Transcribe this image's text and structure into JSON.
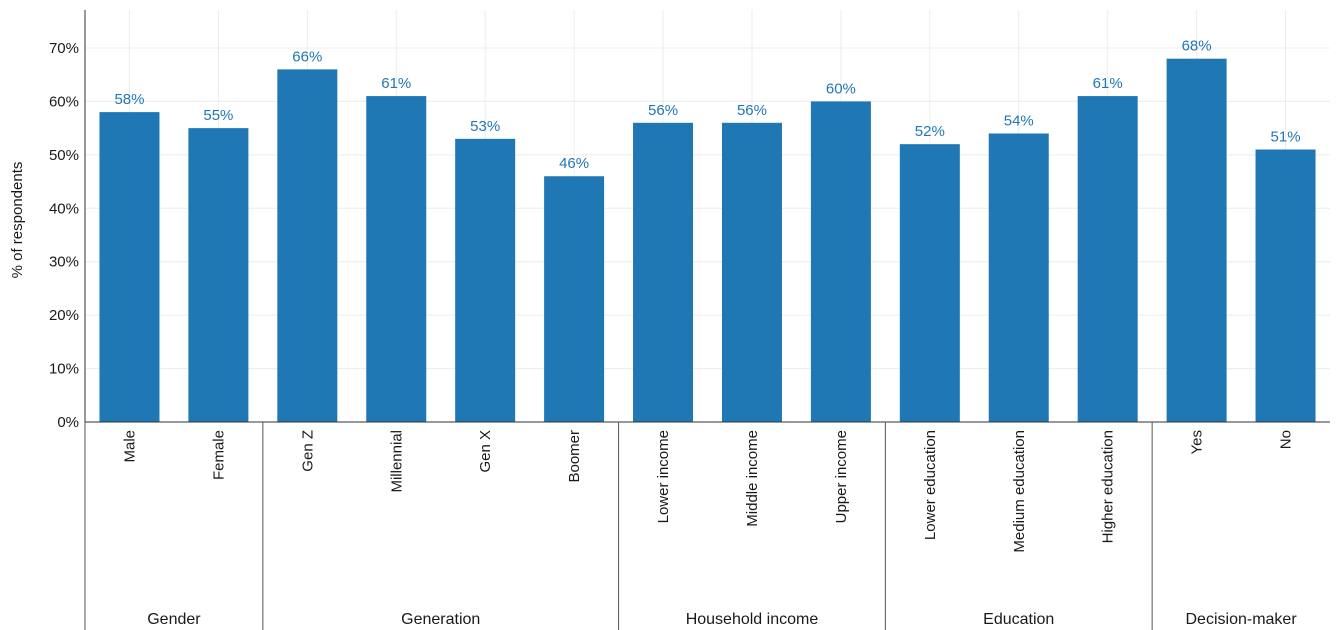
{
  "chart_data": {
    "type": "bar",
    "ylabel": "% of respondents",
    "ylim": [
      0,
      70
    ],
    "yticks": [
      "0%",
      "10%",
      "20%",
      "30%",
      "40%",
      "50%",
      "60%",
      "70%"
    ],
    "grid": true,
    "categories": [
      "Male",
      "Female",
      "Gen Z",
      "Millennial",
      "Gen X",
      "Boomer",
      "Lower income",
      "Middle income",
      "Upper income",
      "Lower education",
      "Medium education",
      "Higher education",
      "Yes",
      "No"
    ],
    "values": [
      58,
      55,
      66,
      61,
      53,
      46,
      56,
      56,
      60,
      52,
      54,
      61,
      68,
      51
    ],
    "data_labels": [
      "58%",
      "55%",
      "66%",
      "61%",
      "53%",
      "46%",
      "56%",
      "56%",
      "60%",
      "52%",
      "54%",
      "61%",
      "68%",
      "51%"
    ],
    "groups": [
      {
        "name": "Gender",
        "count": 2
      },
      {
        "name": "Generation",
        "count": 4
      },
      {
        "name": "Household income",
        "count": 3
      },
      {
        "name": "Education",
        "count": 3
      },
      {
        "name": "Decision-maker",
        "count": 2
      }
    ]
  },
  "colors": {
    "bar": "#1f77b4",
    "data_label": "#1f77b4"
  }
}
